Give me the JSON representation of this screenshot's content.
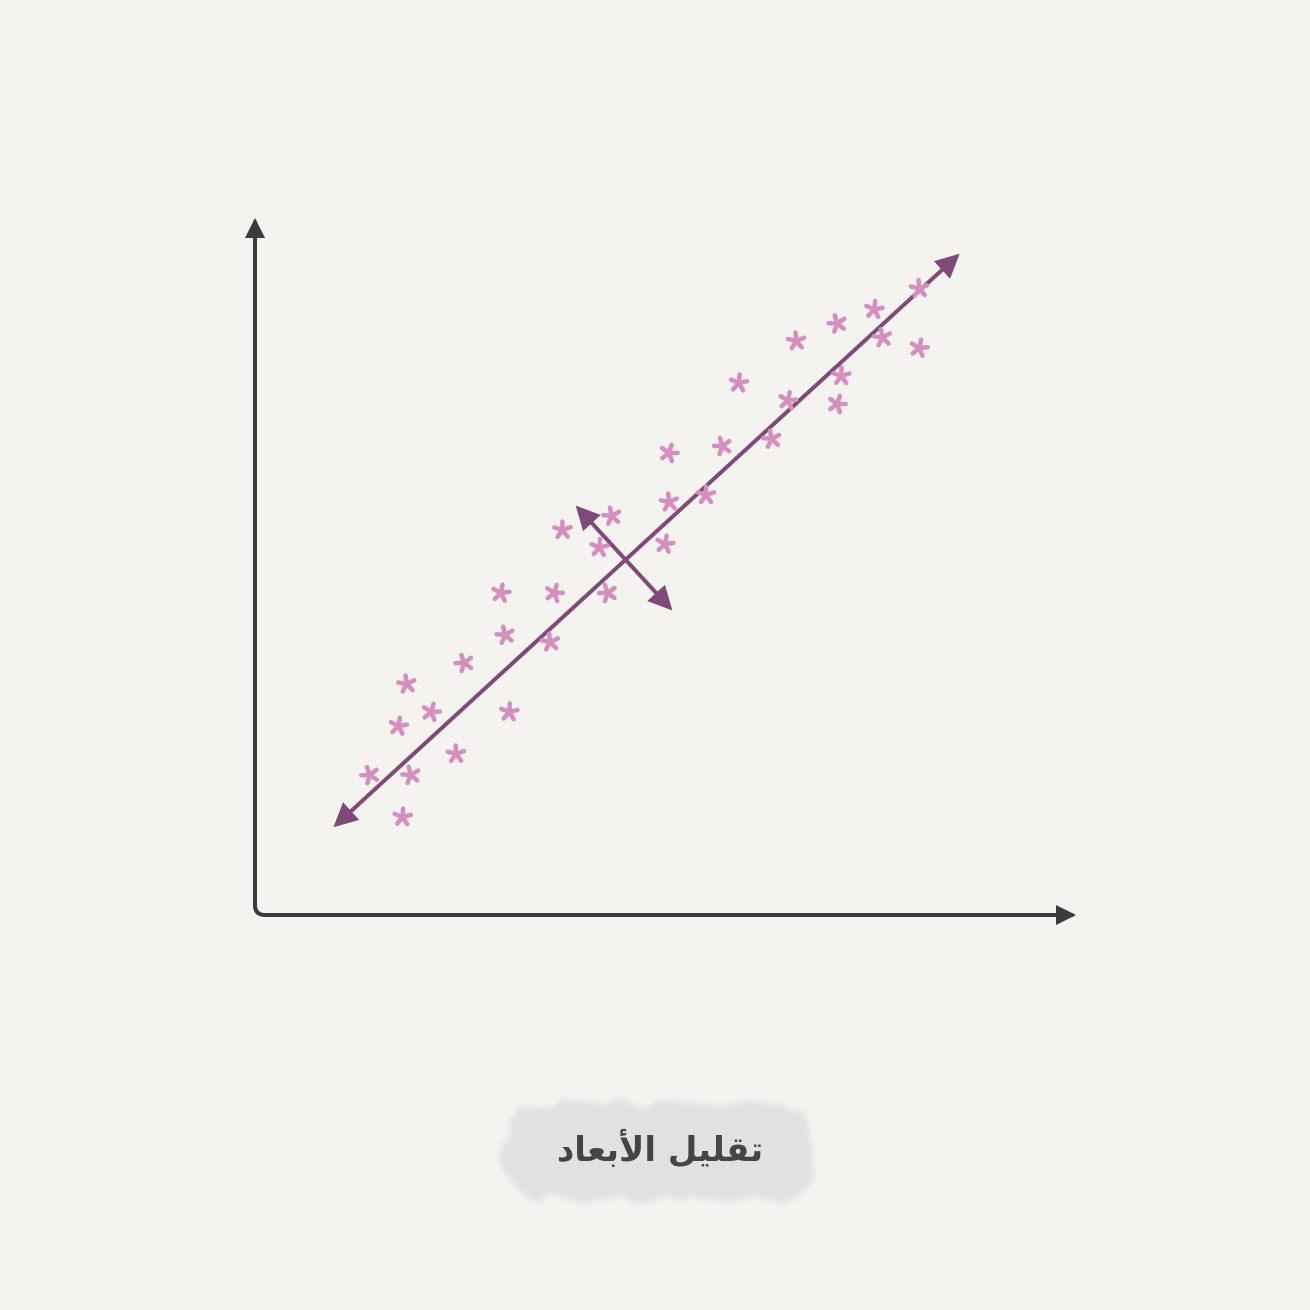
{
  "caption": "تقليل الأبعاد",
  "colors": {
    "background": "#f5f3f0",
    "axis": "#3a3a3a",
    "points": "#d48fbf",
    "principal_arrows": "#7e4a78",
    "caption_smudge": "#e2e1df",
    "caption_text": "#454545"
  },
  "chart_data": {
    "type": "scatter",
    "title": "",
    "xlabel": "",
    "ylabel": "",
    "xlim": [
      0,
      100
    ],
    "ylim": [
      0,
      100
    ],
    "grid": false,
    "marker": "asterisk",
    "series": [
      {
        "points": [
          [
            14,
            20
          ],
          [
            18,
            14
          ],
          [
            19,
            20
          ],
          [
            17.5,
            27
          ],
          [
            18.5,
            33
          ],
          [
            21.5,
            29
          ],
          [
            24.5,
            23
          ],
          [
            25.5,
            36
          ],
          [
            31,
            29
          ],
          [
            30.5,
            40
          ],
          [
            30,
            46
          ],
          [
            36,
            39
          ],
          [
            36.5,
            46
          ],
          [
            37.5,
            55
          ],
          [
            43,
            46
          ],
          [
            42,
            52.5
          ],
          [
            43.5,
            57
          ],
          [
            50,
            53
          ],
          [
            50.5,
            59
          ],
          [
            50.5,
            66
          ],
          [
            55,
            60
          ],
          [
            57,
            67
          ],
          [
            59,
            76
          ],
          [
            63,
            68
          ],
          [
            65,
            73.5
          ],
          [
            66,
            82
          ],
          [
            71,
            73
          ],
          [
            71.5,
            77
          ],
          [
            71,
            84.5
          ],
          [
            75.5,
            86.5
          ],
          [
            76.5,
            82.5
          ],
          [
            81,
            81
          ],
          [
            81,
            89.5
          ]
        ]
      }
    ],
    "principal_components": [
      {
        "from": [
          10,
          13
        ],
        "to": [
          85.5,
          94
        ]
      },
      {
        "from": [
          39.5,
          58
        ],
        "to": [
          50.5,
          44
        ]
      }
    ]
  }
}
